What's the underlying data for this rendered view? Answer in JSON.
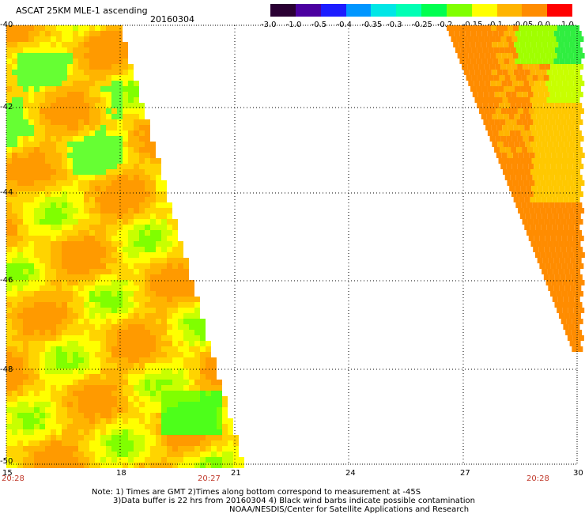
{
  "header": {
    "title": "ASCAT 25KM MLE-1 ascending",
    "date": "20160304"
  },
  "colorbar": {
    "labels": [
      "-3.0",
      "-1.0",
      "-0.5",
      "-0.4",
      "-0.35",
      "-0.3",
      "-0.25",
      "-0.2",
      "-0.15",
      "-0.1",
      "-0.05",
      "0.0",
      "1.0"
    ],
    "colors": [
      "#2a0033",
      "#4b00a0",
      "#1c1cff",
      "#0096ff",
      "#00e6e6",
      "#00ffb4",
      "#00ff50",
      "#80ff00",
      "#ffff00",
      "#ffb400",
      "#ff8c00",
      "#ff0000"
    ]
  },
  "axes": {
    "lat_labels": [
      "-40",
      "-42",
      "-44",
      "-46",
      "-48",
      "-50"
    ],
    "lon_labels": [
      "15",
      "18",
      "21",
      "24",
      "27",
      "30"
    ]
  },
  "time_labels": {
    "left": "20:28",
    "middle": "20:27",
    "right": "20:28"
  },
  "notes": {
    "line1": "Note: 1) Times are GMT 2)Times along bottom correspond to measurement at -45S",
    "line2": "3)Data buffer is 22 hrs from 20160304 4) Black wind barbs indicate possible contamination",
    "line3": "NOAA/NESDIS/Center for Satellite Applications and Research"
  }
}
